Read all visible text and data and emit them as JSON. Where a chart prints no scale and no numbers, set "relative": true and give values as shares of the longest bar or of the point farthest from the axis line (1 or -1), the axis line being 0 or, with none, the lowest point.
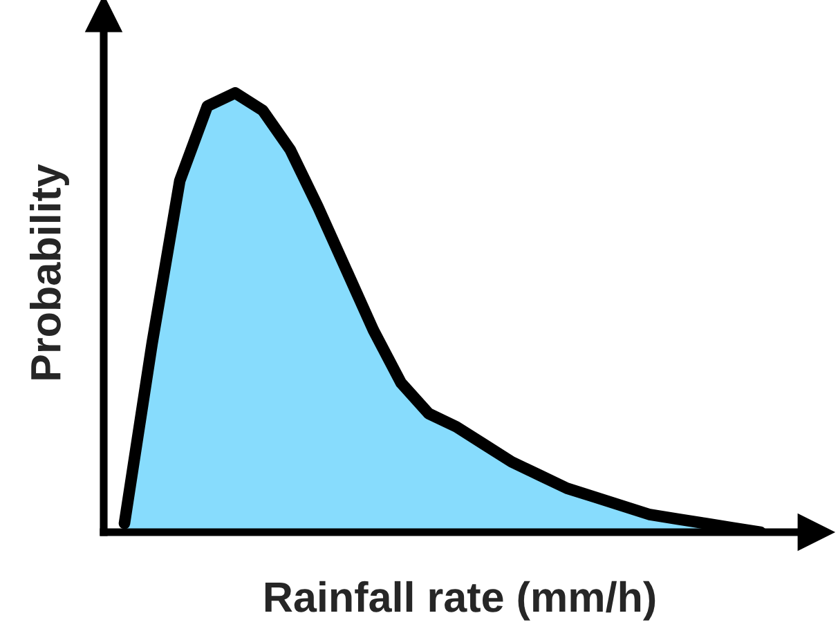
{
  "chart_data": {
    "type": "area",
    "relative": true,
    "xlabel": "Rainfall rate (mm/h)",
    "ylabel": "Probability",
    "categories": [
      null,
      null,
      null,
      null,
      null,
      null,
      null,
      null,
      null,
      null,
      null,
      null,
      null,
      null,
      null,
      null,
      null,
      null,
      null,
      null,
      null,
      null,
      null,
      null
    ],
    "series": [
      {
        "color": "#87dcfd",
        "values": [
          0.02,
          0.43,
          0.8,
          0.97,
          1.0,
          0.96,
          0.87,
          0.74,
          0.6,
          0.46,
          0.34,
          0.27,
          0.24,
          0.2,
          0.16,
          0.13,
          0.1,
          0.08,
          0.06,
          0.04,
          0.03,
          0.02,
          0.01,
          0.0
        ]
      }
    ],
    "grid": false,
    "legend": false
  }
}
